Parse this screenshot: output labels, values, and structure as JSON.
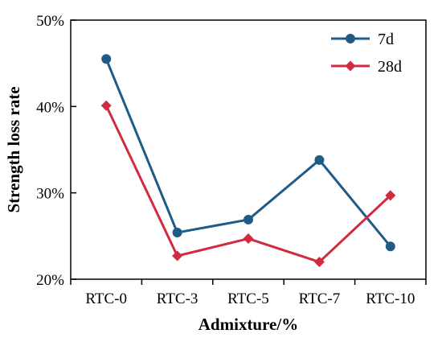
{
  "chart_data": {
    "type": "line",
    "title": "",
    "xlabel": "Admixture/%",
    "ylabel": "Strength loss rate",
    "categories": [
      "RTC-0",
      "RTC-3",
      "RTC-5",
      "RTC-7",
      "RTC-10"
    ],
    "ylim": [
      0.2,
      0.5
    ],
    "yticks": [
      0.2,
      0.3,
      0.4,
      0.5
    ],
    "ytick_labels": [
      "20%",
      "30%",
      "40%",
      "50%"
    ],
    "grid": false,
    "legend": "top-right",
    "series": [
      {
        "name": "7d",
        "values": [
          0.455,
          0.254,
          0.269,
          0.338,
          0.238
        ],
        "color": "#1f5b87",
        "marker": "circle"
      },
      {
        "name": "28d",
        "values": [
          0.401,
          0.227,
          0.247,
          0.22,
          0.297
        ],
        "color": "#d12b3f",
        "marker": "diamond"
      }
    ]
  }
}
